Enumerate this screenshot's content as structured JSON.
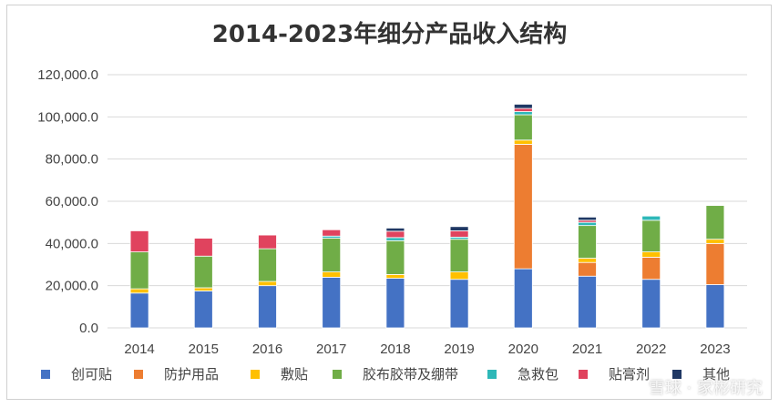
{
  "chart_data": {
    "type": "bar",
    "stacked": true,
    "title": "2014-2023年细分产品收入结构",
    "categories": [
      "2014",
      "2015",
      "2016",
      "2017",
      "2018",
      "2019",
      "2020",
      "2021",
      "2022",
      "2023"
    ],
    "ylim": [
      0,
      120000
    ],
    "yticks": [
      "0.0",
      "20,000.0",
      "40,000.0",
      "60,000.0",
      "80,000.0",
      "100,000.0",
      "120,000.0"
    ],
    "ytick_values": [
      0,
      20000,
      40000,
      60000,
      80000,
      100000,
      120000
    ],
    "grid": true,
    "legend_position": "bottom",
    "series": [
      {
        "name": "创可贴",
        "color": "#4472C4",
        "values": [
          16500,
          17500,
          20000,
          24000,
          23500,
          23000,
          28000,
          24500,
          23000,
          20500
        ]
      },
      {
        "name": "防护用品",
        "color": "#ED7D31",
        "values": [
          0,
          0,
          0,
          0,
          0,
          0,
          59000,
          6500,
          10500,
          19500
        ]
      },
      {
        "name": "敷贴",
        "color": "#FFC000",
        "values": [
          2000,
          1500,
          2000,
          2500,
          1800,
          3500,
          2000,
          2000,
          2500,
          2000
        ]
      },
      {
        "name": "胶布胶带及绷带",
        "color": "#70AD47",
        "values": [
          17500,
          15000,
          15500,
          16000,
          16000,
          15500,
          12000,
          15500,
          15000,
          16000
        ]
      },
      {
        "name": "急救包",
        "color": "#2EB8B8",
        "values": [
          0,
          0,
          0,
          1000,
          1500,
          1000,
          1500,
          1500,
          2000,
          0
        ]
      },
      {
        "name": "贴膏剂",
        "color": "#E0435E",
        "values": [
          10000,
          8500,
          6500,
          3000,
          3000,
          3000,
          1500,
          1000,
          0,
          0
        ]
      },
      {
        "name": "其他",
        "color": "#203864",
        "values": [
          0,
          0,
          0,
          0,
          1500,
          2000,
          2000,
          1500,
          0,
          0
        ]
      }
    ]
  },
  "watermark": "雪球 · 家彬研究"
}
